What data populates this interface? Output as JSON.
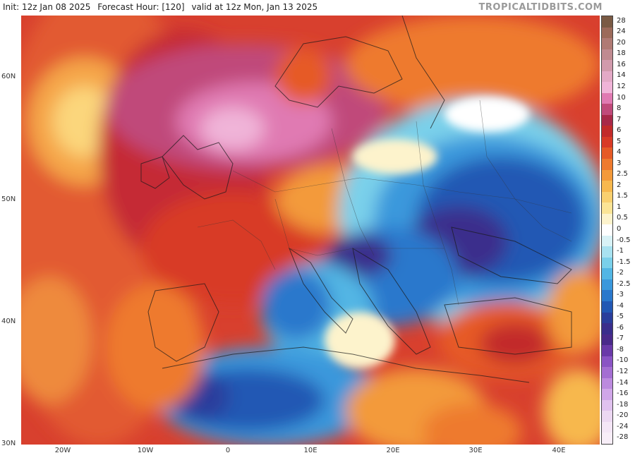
{
  "header": {
    "init": "Init: 12z Jan 08 2025",
    "forecast_hour": "Forecast Hour: [120]",
    "valid": "valid at 12z Mon, Jan 13 2025"
  },
  "brand": "TROPICALTIDBITS.COM",
  "map": {
    "lat_labels": [
      "60N",
      "50N",
      "40N",
      "30N"
    ],
    "lon_labels": [
      "20W",
      "10W",
      "0",
      "10E",
      "20E",
      "30E",
      "40E"
    ]
  },
  "colorbar": {
    "labels": [
      "28",
      "24",
      "20",
      "18",
      "16",
      "14",
      "12",
      "10",
      "8",
      "7",
      "6",
      "5",
      "4",
      "3",
      "2.5",
      "2",
      "1.5",
      "1",
      "0.5",
      "0",
      "-0.5",
      "-1",
      "-1.5",
      "-2",
      "-2.5",
      "-3",
      "-4",
      "-5",
      "-6",
      "-7",
      "-8",
      "-10",
      "-12",
      "-14",
      "-16",
      "-18",
      "-20",
      "-24",
      "-28"
    ],
    "colors": [
      "#7a5a44",
      "#9c6a5a",
      "#b07a74",
      "#c08a90",
      "#d19aac",
      "#e3a9c6",
      "#f0b4d8",
      "#e07ab2",
      "#c04a7a",
      "#a82848",
      "#c22a2a",
      "#d83a26",
      "#e65a26",
      "#ee7a2e",
      "#f39a3a",
      "#f7b84e",
      "#f9d070",
      "#fbe496",
      "#fdf3cc",
      "#ffffff",
      "#d8f2f6",
      "#a8e2f0",
      "#7ad0ea",
      "#52b6e4",
      "#3a98dc",
      "#2a78cc",
      "#2258b4",
      "#2a3e9c",
      "#3a2e8c",
      "#4a2a8a",
      "#6a3aa8",
      "#8a54c4",
      "#a46ed2",
      "#bc8ade",
      "#d0a6e8",
      "#e0c2ee",
      "#ecd8f2",
      "#f4e6f6",
      "#f8eef8"
    ]
  }
}
